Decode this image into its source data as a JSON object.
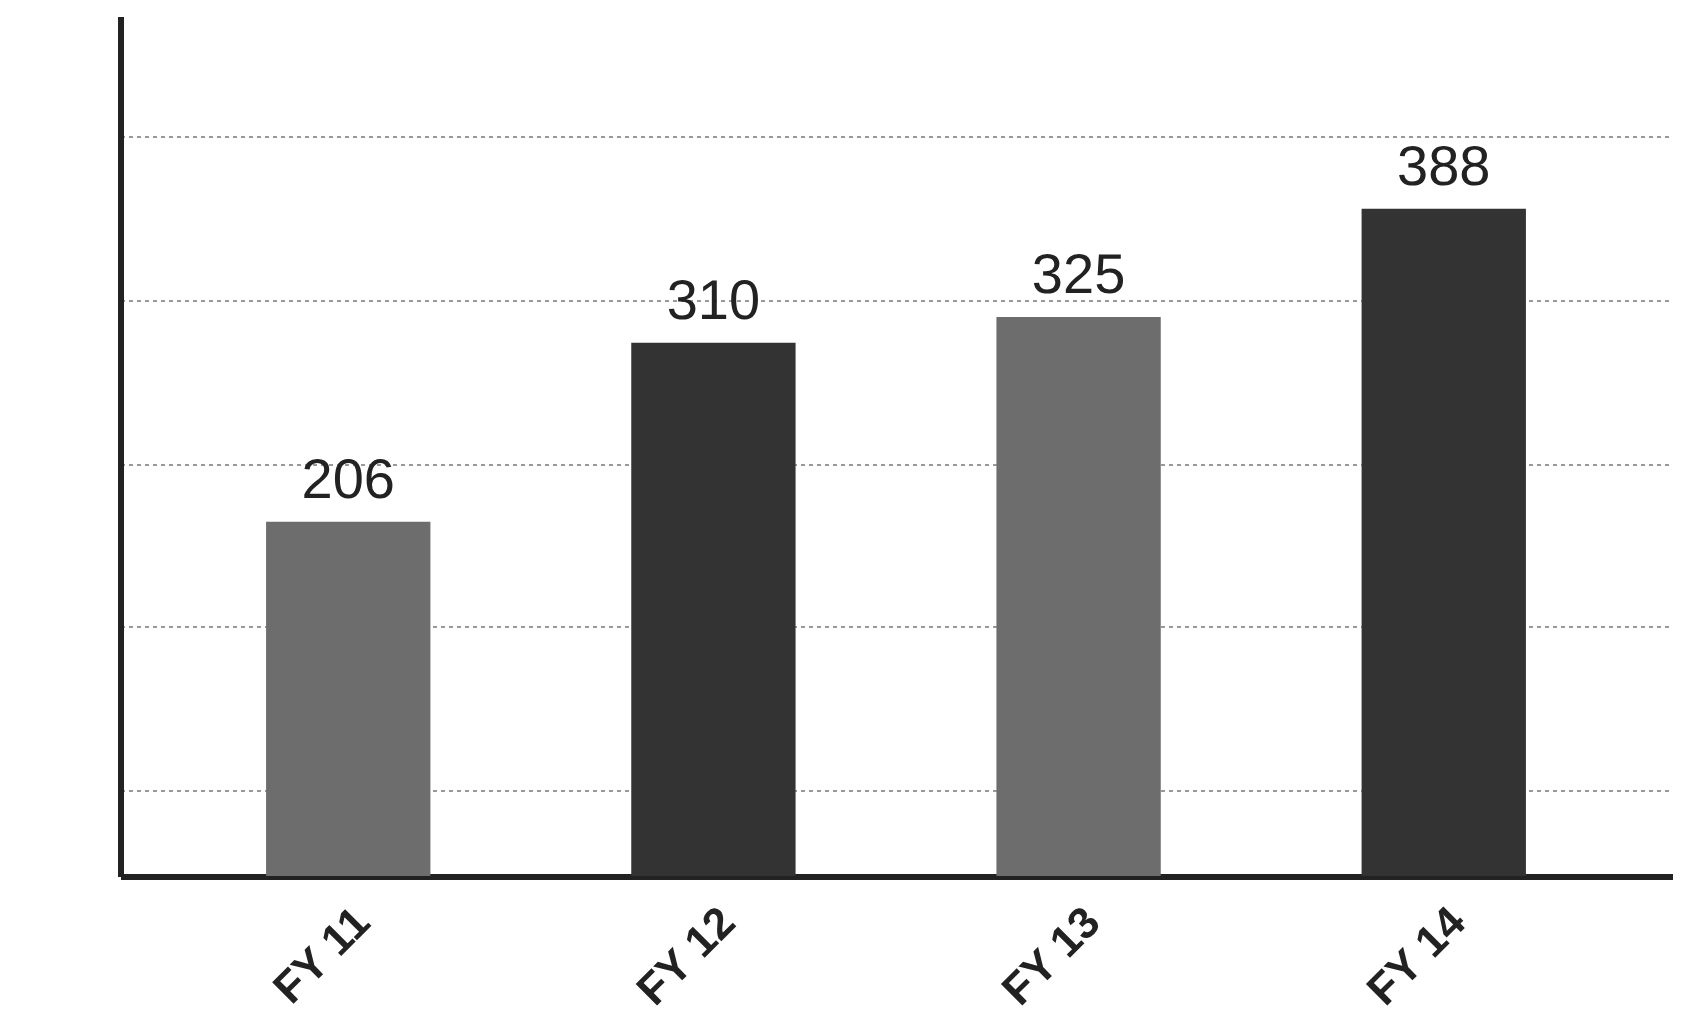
{
  "chart_data": {
    "type": "bar",
    "categories": [
      "FY 11",
      "FY 12",
      "FY 13",
      "FY 14"
    ],
    "values": [
      206,
      310,
      325,
      388
    ],
    "colors": [
      "#6d6d6d",
      "#333333",
      "#6d6d6d",
      "#333333"
    ],
    "data_labels": true,
    "grid": "y",
    "ylim": [
      0,
      500
    ],
    "yticks": [
      {
        "value": 50,
        "label": null
      },
      {
        "value": 145,
        "label": null
      },
      {
        "value": 240,
        "label": null
      },
      {
        "value": 335,
        "label": null
      },
      {
        "value": 430,
        "label": null
      }
    ],
    "tick_labels": "x"
  }
}
